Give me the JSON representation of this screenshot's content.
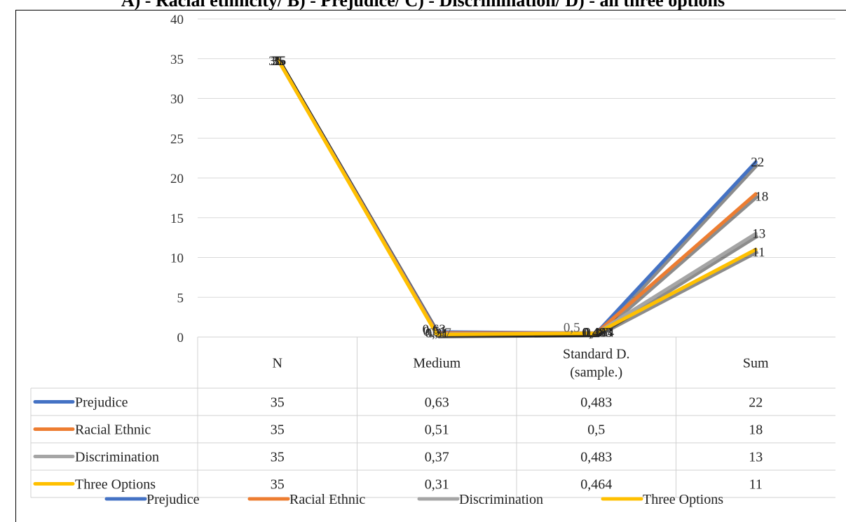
{
  "chart_data": {
    "type": "line",
    "title": "A) - Racial ethnicity/ B) - Prejudice/ C) - Discrimination/ D) - all three options",
    "categories": [
      "N",
      "Medium",
      "Standard D. (sample.)",
      "Sum"
    ],
    "category_lines": [
      [
        "N"
      ],
      [
        "Medium"
      ],
      [
        "Standard D.",
        "(sample.)"
      ],
      [
        "Sum"
      ]
    ],
    "ylim": [
      0,
      40
    ],
    "yticks": [
      "0",
      "5",
      "10",
      "15",
      "20",
      "25",
      "30",
      "35",
      "40"
    ],
    "grid": true,
    "legend_position": "bottom",
    "series": [
      {
        "name": "Prejudice",
        "color": "#4472C4",
        "values": [
          35,
          0.63,
          0.483,
          22
        ],
        "labels": [
          "35",
          "0,63",
          "0,483",
          "22"
        ]
      },
      {
        "name": "Racial Ethnic",
        "color": "#ED7D31",
        "values": [
          35,
          0.51,
          0.5,
          18
        ],
        "labels": [
          "35",
          "0,51",
          "0,5",
          "18"
        ]
      },
      {
        "name": "Discrimination",
        "color": "#A5A5A5",
        "values": [
          35,
          0.37,
          0.483,
          13
        ],
        "labels": [
          "35",
          "0,37",
          "0,483",
          "13"
        ]
      },
      {
        "name": "Three Options",
        "color": "#FFC000",
        "values": [
          35,
          0.31,
          0.464,
          11
        ],
        "labels": [
          "35",
          "0,31",
          "0,464",
          "11"
        ]
      }
    ]
  }
}
